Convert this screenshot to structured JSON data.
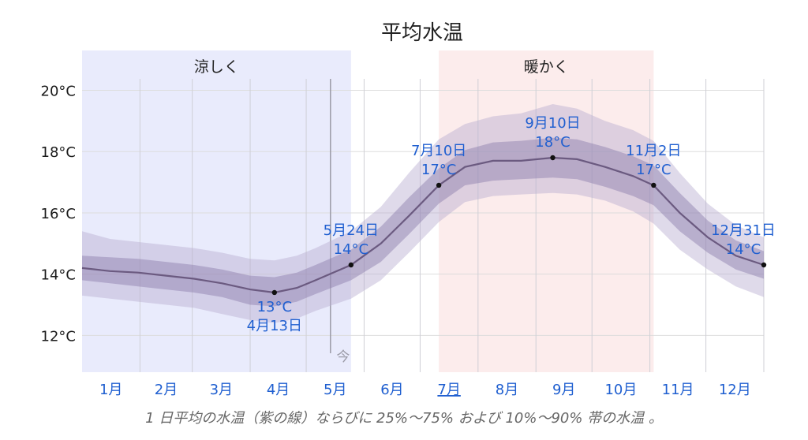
{
  "chart_data": {
    "type": "area",
    "title": "平均水温",
    "caption": "1 日平均の水温（紫の線）ならびに 25%〜75% および 10%〜90% 帯の水温 。",
    "y_ticks": [
      "12°C",
      "14°C",
      "16°C",
      "18°C",
      "20°C"
    ],
    "y_tick_values": [
      12,
      14,
      16,
      18,
      20
    ],
    "ylim": [
      10.8,
      21.3
    ],
    "xlim_days": [
      0,
      365
    ],
    "months": [
      {
        "label": "1月",
        "start": 0
      },
      {
        "label": "2月",
        "start": 31
      },
      {
        "label": "3月",
        "start": 59
      },
      {
        "label": "4月",
        "start": 90
      },
      {
        "label": "5月",
        "start": 120
      },
      {
        "label": "6月",
        "start": 151
      },
      {
        "label": "7月",
        "start": 181
      },
      {
        "label": "8月",
        "start": 212
      },
      {
        "label": "9月",
        "start": 243
      },
      {
        "label": "10月",
        "start": 273
      },
      {
        "label": "11月",
        "start": 304
      },
      {
        "label": "12月",
        "start": 334
      }
    ],
    "highlighted_month": "7月",
    "seasons": [
      {
        "label": "涼しく",
        "start": 0,
        "end": 144,
        "color": "#e9ebfc"
      },
      {
        "label": "暖かく",
        "start": 191,
        "end": 306,
        "color": "#fcecec"
      }
    ],
    "today": {
      "label": "今",
      "day": 133
    },
    "series": {
      "days": [
        0,
        15,
        30,
        45,
        60,
        75,
        90,
        103,
        115,
        125,
        144,
        160,
        175,
        191,
        205,
        220,
        235,
        252,
        265,
        280,
        295,
        306,
        320,
        335,
        350,
        365
      ],
      "mean": [
        14.2,
        14.1,
        14.05,
        13.95,
        13.85,
        13.7,
        13.5,
        13.4,
        13.55,
        13.8,
        14.3,
        15.0,
        15.9,
        16.9,
        17.5,
        17.7,
        17.7,
        17.8,
        17.75,
        17.5,
        17.2,
        16.9,
        16.0,
        15.2,
        14.6,
        14.3
      ],
      "p25": [
        13.8,
        13.7,
        13.6,
        13.5,
        13.4,
        13.25,
        13.0,
        12.95,
        13.1,
        13.35,
        13.8,
        14.4,
        15.3,
        16.3,
        16.9,
        17.05,
        17.1,
        17.15,
        17.1,
        16.85,
        16.55,
        16.25,
        15.4,
        14.7,
        14.15,
        13.85
      ],
      "p75": [
        14.6,
        14.55,
        14.5,
        14.4,
        14.3,
        14.15,
        13.95,
        13.9,
        14.05,
        14.3,
        14.8,
        15.55,
        16.5,
        17.45,
        18.05,
        18.3,
        18.35,
        18.45,
        18.4,
        18.15,
        17.85,
        17.55,
        16.65,
        15.75,
        15.1,
        14.75
      ],
      "p10": [
        13.3,
        13.2,
        13.1,
        13.0,
        12.9,
        12.7,
        12.5,
        12.4,
        12.55,
        12.8,
        13.2,
        13.8,
        14.7,
        15.7,
        16.35,
        16.55,
        16.6,
        16.65,
        16.6,
        16.4,
        16.05,
        15.65,
        14.8,
        14.15,
        13.6,
        13.25
      ],
      "p90": [
        15.4,
        15.15,
        15.05,
        14.95,
        14.85,
        14.7,
        14.5,
        14.45,
        14.6,
        14.85,
        15.4,
        16.2,
        17.3,
        18.4,
        18.9,
        19.15,
        19.25,
        19.55,
        19.4,
        19.0,
        18.7,
        18.35,
        17.3,
        16.3,
        15.6,
        15.2
      ]
    },
    "annotations": [
      {
        "day": 103,
        "value": 13.4,
        "date": "4月13日",
        "temp": "13°C",
        "position": "below"
      },
      {
        "day": 144,
        "value": 14.3,
        "date": "5月24日",
        "temp": "14°C",
        "position": "above"
      },
      {
        "day": 191,
        "value": 16.9,
        "date": "7月10日",
        "temp": "17°C",
        "position": "above"
      },
      {
        "day": 252,
        "value": 17.8,
        "date": "9月10日",
        "temp": "18°C",
        "position": "above"
      },
      {
        "day": 306,
        "value": 16.9,
        "date": "11月2日",
        "temp": "17°C",
        "position": "above"
      },
      {
        "day": 365,
        "value": 14.3,
        "date": "12月31日",
        "temp": "14°C",
        "position": "above-left"
      }
    ],
    "colors": {
      "mean_line": "#6b5a80",
      "band_inner": "#8a7aaa",
      "band_outer": "#b7aed0",
      "label_text": "#1f5fd0",
      "tick_text": "#1a1a1a",
      "month_text": "#1f5fd0"
    }
  }
}
